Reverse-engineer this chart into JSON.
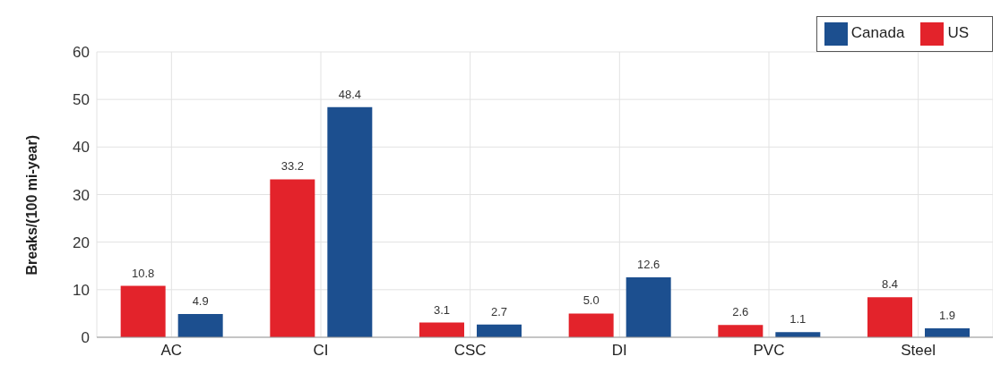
{
  "chart_data": {
    "type": "bar",
    "ylabel": "Breaks/(100 mi-year)",
    "categories": [
      "AC",
      "CI",
      "CSC",
      "DI",
      "PVC",
      "Steel"
    ],
    "series": [
      {
        "name": "US",
        "color": "#e3232b",
        "values": [
          10.8,
          33.2,
          3.1,
          5.0,
          2.6,
          8.4
        ],
        "value_labels": [
          "10.8",
          "33.2",
          "3.1",
          "5.0",
          "2.6",
          "8.4"
        ]
      },
      {
        "name": "Canada",
        "color": "#1c4f8f",
        "values": [
          4.9,
          48.4,
          2.7,
          12.6,
          1.1,
          1.9
        ],
        "value_labels": [
          "4.9",
          "48.4",
          "2.7",
          "12.6",
          "1.1",
          "1.9"
        ]
      }
    ],
    "ylim": [
      0,
      60
    ],
    "yticks": [
      0,
      10,
      20,
      30,
      40,
      50,
      60
    ],
    "grid": true,
    "legend": "top right"
  }
}
